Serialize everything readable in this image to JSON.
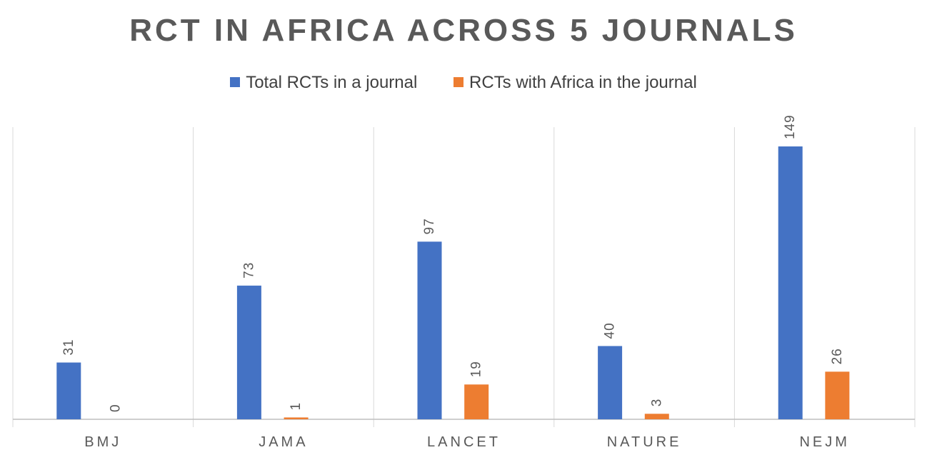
{
  "colors": {
    "total": "#4472C4",
    "africa": "#ED7D31",
    "grid": "#D9D9D9",
    "axis": "#BFBFBF",
    "label": "#595959"
  },
  "chart_data": {
    "type": "bar",
    "title": "RCT IN AFRICA ACROSS 5 JOURNALS",
    "categories": [
      "BMJ",
      "JAMA",
      "LANCET",
      "NATURE",
      "NEJM"
    ],
    "series": [
      {
        "name": "Total RCTs in a journal",
        "values": [
          31,
          73,
          97,
          40,
          149
        ]
      },
      {
        "name": "RCTs with Africa in the journal",
        "values": [
          0,
          1,
          19,
          3,
          26
        ]
      }
    ],
    "xlabel": "",
    "ylabel": "",
    "ylim": [
      0,
      160
    ],
    "legend": "top-center",
    "grid": "vertical category separators",
    "data_labels": true
  }
}
